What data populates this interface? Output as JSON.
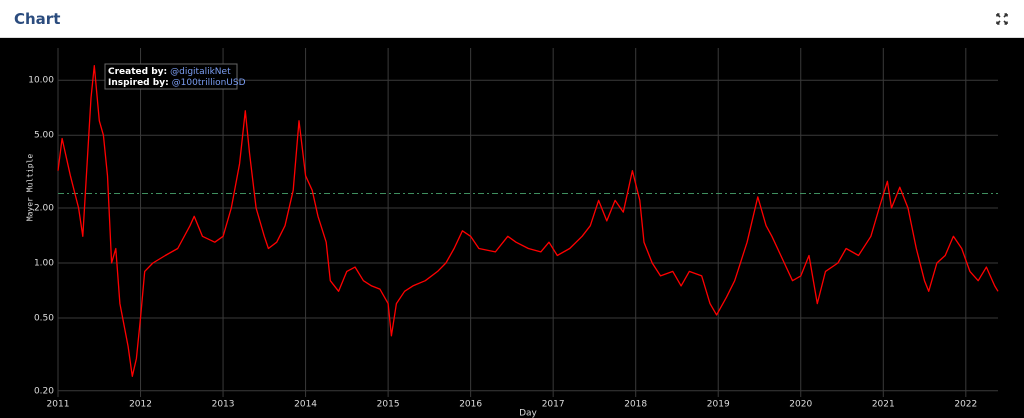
{
  "header": {
    "title": "Chart"
  },
  "chart_data": {
    "type": "line",
    "x_label": "Day",
    "y_label": "Mayer Multiple",
    "log_y": true,
    "grid": true,
    "color": "#ff0000",
    "xlim": [
      2011,
      2022.39
    ],
    "ylim": [
      0.185,
      15
    ],
    "xticks": [
      2011,
      2012,
      2013,
      2014,
      2015,
      2016,
      2017,
      2018,
      2019,
      2020,
      2021,
      2022
    ],
    "yticks": [
      {
        "value": 0.2,
        "label": "0.20"
      },
      {
        "value": 0.5,
        "label": "0.50"
      },
      {
        "value": 1,
        "label": "1.00"
      },
      {
        "value": 2,
        "label": "2.00"
      },
      {
        "value": 5,
        "label": "5.00"
      },
      {
        "value": 10,
        "label": "10.00"
      }
    ],
    "reference_line": {
      "value": 2.4,
      "color": "#3f8f5f"
    },
    "annotations": [
      {
        "label": "Created by:",
        "text": "@digitalikNet"
      },
      {
        "label": "Inspired by:",
        "text": "@100trillionUSD"
      }
    ],
    "x": [
      2011.0,
      2011.05,
      2011.15,
      2011.25,
      2011.3,
      2011.4,
      2011.44,
      2011.5,
      2011.55,
      2011.6,
      2011.65,
      2011.7,
      2011.75,
      2011.85,
      2011.9,
      2011.95,
      2012.0,
      2012.05,
      2012.15,
      2012.3,
      2012.45,
      2012.6,
      2012.65,
      2012.75,
      2012.9,
      2013.0,
      2013.1,
      2013.2,
      2013.27,
      2013.32,
      2013.4,
      2013.5,
      2013.55,
      2013.65,
      2013.75,
      2013.85,
      2013.92,
      2014.0,
      2014.08,
      2014.15,
      2014.25,
      2014.3,
      2014.4,
      2014.5,
      2014.6,
      2014.7,
      2014.8,
      2014.9,
      2015.0,
      2015.04,
      2015.1,
      2015.2,
      2015.3,
      2015.45,
      2015.6,
      2015.7,
      2015.8,
      2015.9,
      2016.0,
      2016.1,
      2016.3,
      2016.45,
      2016.55,
      2016.7,
      2016.85,
      2016.95,
      2017.05,
      2017.2,
      2017.35,
      2017.45,
      2017.55,
      2017.65,
      2017.75,
      2017.85,
      2017.96,
      2018.05,
      2018.1,
      2018.2,
      2018.3,
      2018.45,
      2018.55,
      2018.65,
      2018.8,
      2018.9,
      2018.98,
      2019.1,
      2019.2,
      2019.35,
      2019.48,
      2019.58,
      2019.65,
      2019.8,
      2019.9,
      2020.0,
      2020.1,
      2020.2,
      2020.3,
      2020.45,
      2020.55,
      2020.7,
      2020.85,
      2020.95,
      2021.05,
      2021.1,
      2021.2,
      2021.3,
      2021.4,
      2021.5,
      2021.55,
      2021.65,
      2021.75,
      2021.85,
      2021.95,
      2022.05,
      2022.15,
      2022.25,
      2022.35,
      2022.39
    ],
    "values": [
      3.2,
      4.8,
      3.0,
      2.0,
      1.4,
      8.0,
      12.0,
      6.0,
      5.0,
      3.0,
      1.0,
      1.2,
      0.6,
      0.35,
      0.24,
      0.3,
      0.5,
      0.9,
      1.0,
      1.1,
      1.2,
      1.6,
      1.8,
      1.4,
      1.3,
      1.4,
      2.0,
      3.5,
      6.8,
      4.0,
      2.0,
      1.4,
      1.2,
      1.3,
      1.6,
      2.5,
      6.0,
      3.0,
      2.5,
      1.8,
      1.3,
      0.8,
      0.7,
      0.9,
      0.95,
      0.8,
      0.75,
      0.72,
      0.6,
      0.4,
      0.6,
      0.7,
      0.75,
      0.8,
      0.9,
      1.0,
      1.2,
      1.5,
      1.4,
      1.2,
      1.15,
      1.4,
      1.3,
      1.2,
      1.15,
      1.3,
      1.1,
      1.2,
      1.4,
      1.6,
      2.2,
      1.7,
      2.2,
      1.9,
      3.2,
      2.2,
      1.3,
      1.0,
      0.85,
      0.9,
      0.75,
      0.9,
      0.85,
      0.6,
      0.52,
      0.65,
      0.8,
      1.3,
      2.3,
      1.6,
      1.4,
      1.0,
      0.8,
      0.85,
      1.1,
      0.6,
      0.9,
      1.0,
      1.2,
      1.1,
      1.4,
      2.0,
      2.8,
      2.0,
      2.6,
      2.0,
      1.2,
      0.8,
      0.7,
      1.0,
      1.1,
      1.4,
      1.2,
      0.9,
      0.8,
      0.95,
      0.75,
      0.7
    ]
  }
}
